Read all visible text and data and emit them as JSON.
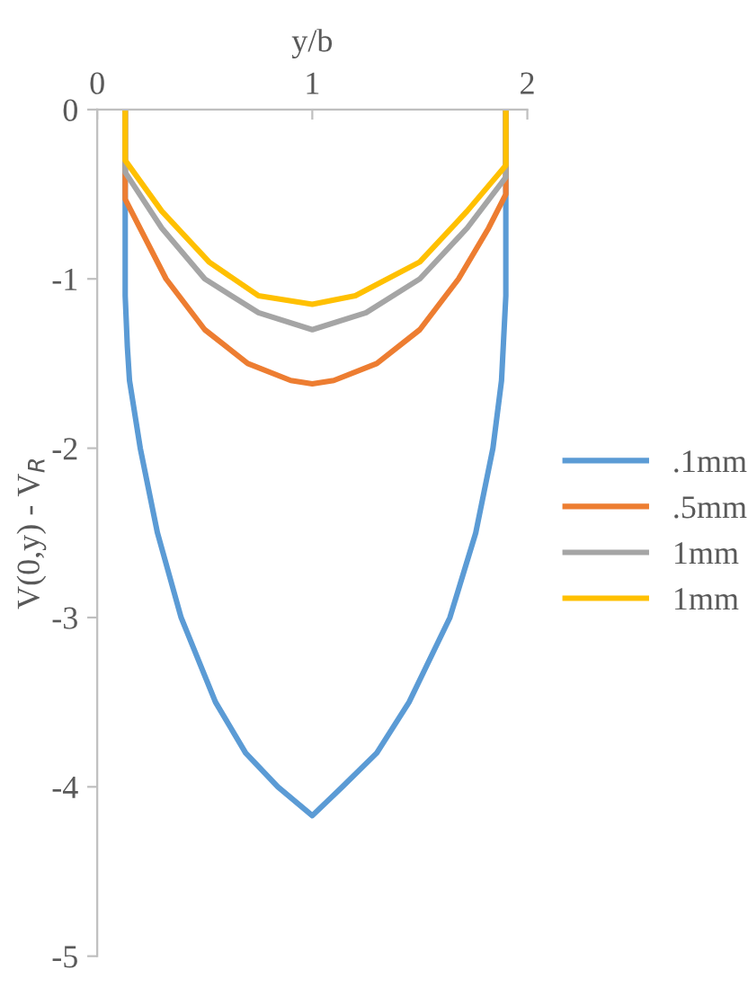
{
  "chart_data": {
    "type": "line",
    "xlabel": "y/b",
    "ylabel": "V(0,y) - V$_{R}$",
    "xlim": [
      0,
      2
    ],
    "xticks": [
      0,
      1,
      2
    ],
    "ylim": [
      -5,
      0
    ],
    "yticks": [
      0,
      -1,
      -2,
      -3,
      -4,
      -5
    ],
    "grid": false,
    "legend": "right",
    "marker": "none",
    "line_style": "solid",
    "series": [
      {
        "name": ".1mm",
        "color": "#5b9bd5",
        "x": [
          0.13,
          0.13,
          0.14,
          0.15,
          0.2,
          0.28,
          0.39,
          0.55,
          0.69,
          0.84,
          1.0,
          1.14,
          1.3,
          1.45,
          1.64,
          1.76,
          1.84,
          1.88,
          1.9,
          1.9
        ],
        "values": [
          0,
          -1.1,
          -1.4,
          -1.6,
          -2.0,
          -2.5,
          -3.0,
          -3.5,
          -3.8,
          -4.0,
          -4.17,
          -4.0,
          -3.8,
          -3.5,
          -3.0,
          -2.5,
          -2.0,
          -1.6,
          -1.1,
          0
        ]
      },
      {
        "name": ".5mm",
        "color": "#ed7d31",
        "x": [
          0.13,
          0.13,
          0.32,
          0.5,
          0.7,
          0.9,
          1.0,
          1.1,
          1.3,
          1.5,
          1.68,
          1.82,
          1.9,
          1.9
        ],
        "values": [
          0,
          -0.53,
          -1.0,
          -1.3,
          -1.5,
          -1.6,
          -1.62,
          -1.6,
          -1.5,
          -1.3,
          -1.0,
          -0.7,
          -0.5,
          0
        ]
      },
      {
        "name": "1mm",
        "color": "#a5a5a5",
        "x": [
          0.13,
          0.13,
          0.3,
          0.5,
          0.75,
          1.0,
          1.25,
          1.5,
          1.72,
          1.9,
          1.9
        ],
        "values": [
          0,
          -0.37,
          -0.7,
          -1.0,
          -1.2,
          -1.3,
          -1.2,
          -1.0,
          -0.7,
          -0.4,
          0
        ]
      },
      {
        "name": "1mm",
        "color": "#ffc000",
        "x": [
          0.13,
          0.13,
          0.3,
          0.52,
          0.75,
          1.0,
          1.2,
          1.5,
          1.72,
          1.9,
          1.9
        ],
        "values": [
          0,
          -0.3,
          -0.6,
          -0.9,
          -1.1,
          -1.15,
          -1.1,
          -0.9,
          -0.6,
          -0.33,
          0
        ]
      }
    ]
  }
}
